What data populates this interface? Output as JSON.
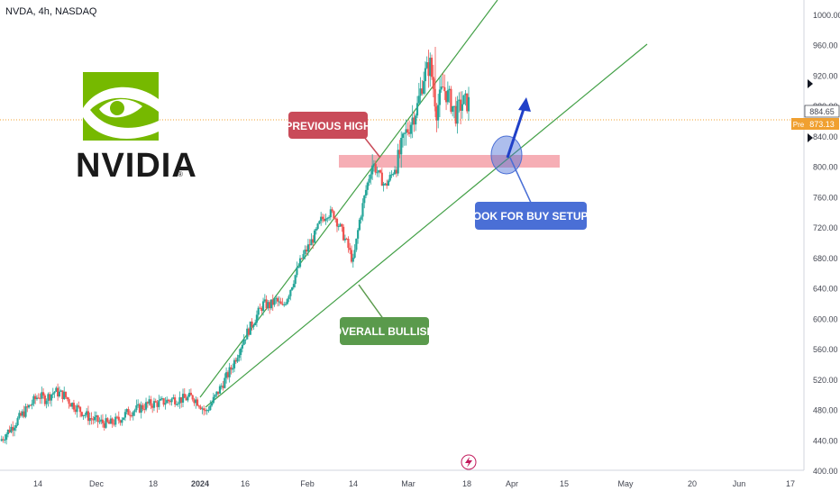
{
  "header": {
    "symbol_line": "NVDA, 4h, NASDAQ"
  },
  "logo": {
    "word": "NVIDIA",
    "mark": "®"
  },
  "price_scale": {
    "ticks": [
      "1000.00",
      "960.00",
      "920.00",
      "880.00",
      "840.00",
      "800.00",
      "760.00",
      "720.00",
      "680.00",
      "640.00",
      "600.00",
      "560.00",
      "520.00",
      "480.00",
      "440.00",
      "400.00"
    ],
    "last_price_label": "884.65",
    "pre_price_label": "873.13",
    "pre_tag": "Pre"
  },
  "time_scale": {
    "ticks": [
      "14",
      "Dec",
      "18",
      "2024",
      "16",
      "Feb",
      "14",
      "Mar",
      "18",
      "Apr",
      "15",
      "May",
      "20",
      "Jun",
      "17"
    ]
  },
  "annotations": {
    "previous_high": "PREVIOUS HIGH",
    "look_for_buy": "LOOK FOR BUY SETUPS",
    "overall_bullish": "OVERALL BULLISH"
  },
  "colors": {
    "up": "#26a69a",
    "down": "#ef5350",
    "trendline": "#43a047",
    "zone": "#f5a0a8",
    "callout_red": "#c94b59",
    "callout_blue": "#4a6fd6",
    "callout_green": "#5a9a4c",
    "price_line": "#f0a030"
  },
  "chart_data": {
    "type": "candlestick",
    "title": "NVDA, 4h, NASDAQ",
    "ylim": [
      380,
      1020
    ],
    "key_levels": {
      "last_price": 884.65,
      "premarket": 873.13,
      "resistance_zone": [
        801,
        819
      ]
    },
    "close_path": [
      [
        0,
        440
      ],
      [
        3,
        455
      ],
      [
        6,
        470
      ],
      [
        8,
        480
      ],
      [
        10,
        490
      ],
      [
        12,
        500
      ],
      [
        14,
        495
      ],
      [
        17,
        505
      ],
      [
        20,
        500
      ],
      [
        22,
        490
      ],
      [
        25,
        480
      ],
      [
        28,
        470
      ],
      [
        31,
        465
      ],
      [
        34,
        462
      ],
      [
        37,
        468
      ],
      [
        40,
        478
      ],
      [
        43,
        482
      ],
      [
        46,
        488
      ],
      [
        50,
        490
      ],
      [
        54,
        495
      ],
      [
        57,
        495
      ],
      [
        60,
        498
      ],
      [
        62,
        490
      ],
      [
        64,
        478
      ],
      [
        66,
        490
      ],
      [
        68,
        505
      ],
      [
        70,
        520
      ],
      [
        72,
        535
      ],
      [
        74,
        555
      ],
      [
        76,
        575
      ],
      [
        78,
        590
      ],
      [
        80,
        605
      ],
      [
        82,
        620
      ],
      [
        84,
        618
      ],
      [
        86,
        625
      ],
      [
        88,
        615
      ],
      [
        90,
        635
      ],
      [
        92,
        658
      ],
      [
        94,
        680
      ],
      [
        96,
        695
      ],
      [
        98,
        710
      ],
      [
        100,
        730
      ],
      [
        102,
        740
      ],
      [
        104,
        738
      ],
      [
        106,
        720
      ],
      [
        108,
        700
      ],
      [
        110,
        675
      ],
      [
        112,
        730
      ],
      [
        114,
        770
      ],
      [
        116,
        805
      ],
      [
        118,
        790
      ],
      [
        120,
        775
      ],
      [
        122,
        790
      ],
      [
        124,
        810
      ],
      [
        126,
        840
      ],
      [
        128,
        860
      ],
      [
        130,
        880
      ],
      [
        132,
        920
      ],
      [
        134,
        935
      ],
      [
        136,
        875
      ],
      [
        138,
        905
      ],
      [
        140,
        890
      ],
      [
        142,
        870
      ],
      [
        144,
        885
      ],
      [
        146,
        884.65
      ]
    ]
  }
}
